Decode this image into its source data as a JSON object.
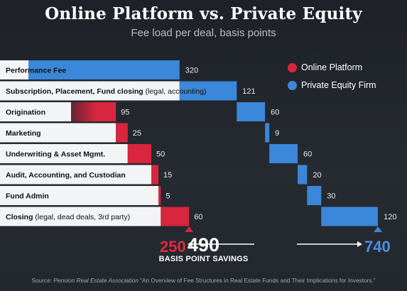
{
  "title": "Online Platform vs. Private Equity",
  "subtitle": "Fee load per deal, basis points",
  "colors": {
    "online": "#d7263d",
    "pe": "#3b87d9",
    "label_bg": "#f3f4f6"
  },
  "legend": [
    {
      "label": "Online Platform",
      "color": "#d7263d"
    },
    {
      "label": "Private Equity Firm",
      "color": "#3b87d9"
    }
  ],
  "chart_data": {
    "type": "bar",
    "subtype": "waterfall",
    "title": "Online Platform vs. Private Equity",
    "subtitle": "Fee load per deal, basis points",
    "categories": [
      {
        "main": "Performance Fee",
        "detail": ""
      },
      {
        "main": "Subscription, Placement, Fund closing",
        "detail": " (legal, accounting)"
      },
      {
        "main": "Origination",
        "detail": ""
      },
      {
        "main": "Marketing",
        "detail": ""
      },
      {
        "main": "Underwriting & Asset Mgmt.",
        "detail": ""
      },
      {
        "main": "Audit, Accounting, and Custodian",
        "detail": ""
      },
      {
        "main": "Fund Admin",
        "detail": ""
      },
      {
        "main": "Closing",
        "detail": " (legal, dead deals, 3rd party)"
      }
    ],
    "series": [
      {
        "name": "Online Platform",
        "values": [
          null,
          null,
          95,
          25,
          50,
          15,
          5,
          60
        ],
        "total": 250
      },
      {
        "name": "Private Equity Firm",
        "values": [
          320,
          121,
          60,
          9,
          60,
          20,
          30,
          120
        ],
        "total": 740
      }
    ],
    "totals_labels": {
      "online": "250",
      "pe": "740"
    },
    "savings": {
      "value": "490",
      "caption": "BASIS POINT SAVINGS"
    },
    "xlim": [
      0,
      740
    ]
  },
  "source": {
    "prefix": "Source: ",
    "italic": "Pension Real Estate Association",
    "text": " “An Overview of Fee Structures in Real Estate Funds and Their Implications for Investors.”"
  }
}
